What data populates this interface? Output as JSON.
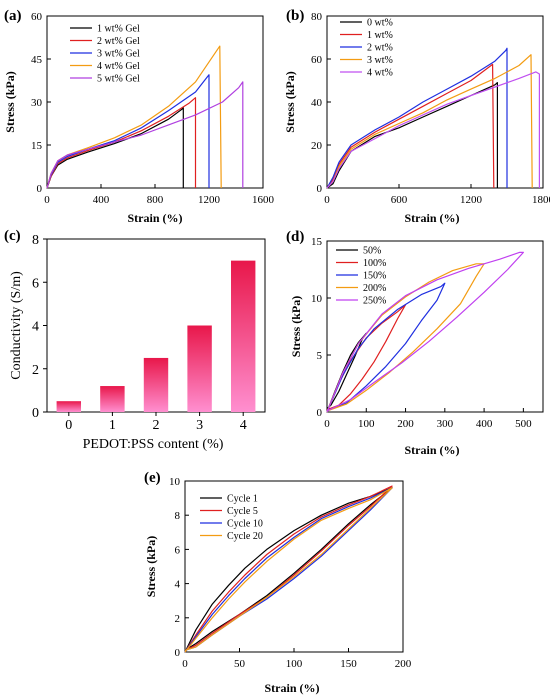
{
  "chart_data": [
    {
      "panel": "(a)",
      "type": "line",
      "xlabel": "Strain (%)",
      "ylabel": "Stress (kPa)",
      "xlim": [
        0,
        1600
      ],
      "ylim": [
        0,
        60
      ],
      "xticks": [
        0,
        400,
        800,
        1200,
        1600
      ],
      "yticks": [
        0,
        15,
        30,
        45,
        60
      ],
      "legend": "top-left",
      "series": [
        {
          "name": "1 wt% Gel",
          "color": "#000000",
          "x": [
            0,
            30,
            80,
            150,
            300,
            500,
            700,
            900,
            1000,
            1010,
            1010
          ],
          "y": [
            0,
            4,
            8,
            10,
            12.5,
            15.5,
            19,
            24,
            27.5,
            28,
            0
          ]
        },
        {
          "name": "2 wt% Gel",
          "color": "#e02020",
          "x": [
            0,
            30,
            80,
            150,
            300,
            500,
            700,
            900,
            1050,
            1100,
            1100
          ],
          "y": [
            0,
            4,
            8.5,
            10.5,
            13,
            16,
            20,
            25,
            29.5,
            31.5,
            0
          ]
        },
        {
          "name": "3 wt% Gel",
          "color": "#1f2fe0",
          "x": [
            0,
            30,
            80,
            150,
            300,
            500,
            700,
            900,
            1100,
            1200,
            1200
          ],
          "y": [
            0,
            4.5,
            9,
            11,
            13.5,
            16.5,
            21,
            27,
            33.5,
            39.5,
            0
          ]
        },
        {
          "name": "4 wt% Gel",
          "color": "#f39c12",
          "x": [
            0,
            30,
            80,
            150,
            300,
            500,
            700,
            900,
            1100,
            1280,
            1290
          ],
          "y": [
            0,
            5,
            9.5,
            11.5,
            14,
            17.5,
            22,
            28.5,
            37,
            49.5,
            0
          ]
        },
        {
          "name": "5 wt% Gel",
          "color": "#b040e0",
          "x": [
            0,
            30,
            80,
            150,
            300,
            500,
            700,
            900,
            1100,
            1300,
            1420,
            1450,
            1450
          ],
          "y": [
            0,
            5,
            9.5,
            11.5,
            13.5,
            16,
            18.5,
            22,
            25.5,
            30,
            35,
            37,
            0
          ]
        }
      ]
    },
    {
      "panel": "(b)",
      "type": "line",
      "xlabel": "Strain (%)",
      "ylabel": "Stress (kPa)",
      "xlim": [
        0,
        1800
      ],
      "ylim": [
        0,
        80
      ],
      "xticks": [
        0,
        600,
        1200,
        1800
      ],
      "yticks": [
        0,
        20,
        40,
        60,
        80
      ],
      "legend": "top-left",
      "series": [
        {
          "name": "0 wt%",
          "color": "#000000",
          "x": [
            0,
            50,
            100,
            200,
            400,
            600,
            800,
            1000,
            1200,
            1400,
            1420,
            1420
          ],
          "y": [
            0,
            2,
            8,
            17,
            24,
            28,
            33,
            38,
            43,
            48,
            49,
            0
          ]
        },
        {
          "name": "1 wt%",
          "color": "#e02020",
          "x": [
            0,
            50,
            100,
            200,
            400,
            600,
            800,
            1000,
            1200,
            1380,
            1390
          ],
          "y": [
            0,
            4,
            11,
            19,
            26,
            32,
            38,
            44,
            50,
            57.5,
            0
          ]
        },
        {
          "name": "2 wt%",
          "color": "#1f2fe0",
          "x": [
            0,
            50,
            100,
            200,
            400,
            600,
            800,
            1000,
            1200,
            1400,
            1490,
            1500,
            1500
          ],
          "y": [
            0,
            5,
            12,
            20,
            27,
            33,
            40,
            46,
            52,
            59,
            64,
            65,
            0
          ]
        },
        {
          "name": "3 wt%",
          "color": "#f39c12",
          "x": [
            0,
            50,
            100,
            200,
            400,
            600,
            800,
            1000,
            1200,
            1400,
            1600,
            1700,
            1710
          ],
          "y": [
            0,
            3,
            10,
            18,
            25,
            30,
            35,
            41,
            46,
            51,
            57,
            62,
            0
          ]
        },
        {
          "name": "4 wt%",
          "color": "#c050f0",
          "x": [
            0,
            50,
            100,
            200,
            400,
            600,
            800,
            1000,
            1200,
            1400,
            1600,
            1740,
            1770,
            1770
          ],
          "y": [
            0,
            3,
            9,
            17,
            23,
            29,
            34,
            39,
            43,
            47,
            51,
            54,
            53,
            0
          ]
        }
      ]
    },
    {
      "panel": "(c)",
      "type": "bar",
      "xlabel": "PEDOT:PSS content (%)",
      "ylabel": "Conductivity (S/m)",
      "categories": [
        "0",
        "1",
        "2",
        "3",
        "4"
      ],
      "values": [
        0.5,
        1.2,
        2.5,
        4.0,
        7.0
      ],
      "ylim": [
        0,
        8
      ],
      "yticks": [
        0,
        2,
        4,
        6,
        8
      ],
      "color_top": "#e8174a",
      "color_bottom": "#ff8fd0"
    },
    {
      "panel": "(d)",
      "type": "line",
      "xlabel": "Strain (%)",
      "ylabel": "Stress (kPa)",
      "xlim": [
        0,
        550
      ],
      "ylim": [
        0,
        15
      ],
      "xticks": [
        0,
        100,
        200,
        300,
        400,
        500
      ],
      "yticks": [
        0,
        5,
        10,
        15
      ],
      "legend": "top-left",
      "series": [
        {
          "name": "50%",
          "color": "#000000",
          "x": [
            0,
            20,
            40,
            60,
            80,
            100,
            90,
            70,
            50,
            30,
            10,
            0
          ],
          "y": [
            0,
            1.8,
            3.5,
            5.0,
            6.1,
            6.9,
            6.4,
            4.8,
            3.3,
            1.8,
            0.6,
            0.3
          ]
        },
        {
          "name": "100%",
          "color": "#e02020",
          "x": [
            0,
            30,
            60,
            100,
            140,
            180,
            200,
            180,
            150,
            120,
            90,
            60,
            30,
            0
          ],
          "y": [
            0,
            2.5,
            4.5,
            6.5,
            7.8,
            8.8,
            9.4,
            8.2,
            6.2,
            4.4,
            2.9,
            1.6,
            0.6,
            0.2
          ]
        },
        {
          "name": "150%",
          "color": "#1f2fe0",
          "x": [
            0,
            40,
            80,
            120,
            180,
            240,
            290,
            300,
            280,
            240,
            200,
            150,
            100,
            50,
            0
          ],
          "y": [
            0,
            3.2,
            5.6,
            7.3,
            9.0,
            10.3,
            11.0,
            11.3,
            9.8,
            8.0,
            6.0,
            4.0,
            2.3,
            0.8,
            0.1
          ]
        },
        {
          "name": "200%",
          "color": "#f39c12",
          "x": [
            0,
            40,
            80,
            140,
            200,
            260,
            320,
            380,
            400,
            380,
            340,
            280,
            220,
            160,
            100,
            50,
            0
          ],
          "y": [
            0,
            3.4,
            6.0,
            8.5,
            10.1,
            11.4,
            12.4,
            13.0,
            13.0,
            11.9,
            9.5,
            7.3,
            5.3,
            3.5,
            1.9,
            0.7,
            0.1
          ]
        },
        {
          "name": "250%",
          "color": "#c040f0",
          "x": [
            0,
            40,
            80,
            140,
            200,
            280,
            360,
            440,
            490,
            500,
            460,
            400,
            330,
            260,
            190,
            120,
            60,
            0
          ],
          "y": [
            0,
            3.4,
            6.0,
            8.6,
            10.2,
            11.6,
            12.6,
            13.4,
            14.0,
            14.0,
            12.5,
            10.5,
            8.3,
            6.2,
            4.3,
            2.6,
            1.1,
            0.1
          ]
        }
      ]
    },
    {
      "panel": "(e)",
      "type": "line",
      "xlabel": "Strain (%)",
      "ylabel": "Stress (kPa)",
      "xlim": [
        0,
        200
      ],
      "ylim": [
        0,
        10
      ],
      "xticks": [
        0,
        50,
        100,
        150,
        200
      ],
      "yticks": [
        0,
        2,
        4,
        6,
        8,
        10
      ],
      "legend": "top-left",
      "series": [
        {
          "name": "Cycle 1",
          "color": "#000000",
          "x": [
            0,
            10,
            25,
            40,
            55,
            75,
            100,
            125,
            150,
            170,
            190,
            170,
            150,
            125,
            100,
            75,
            50,
            25,
            10,
            0
          ],
          "y": [
            0,
            1.3,
            2.8,
            3.9,
            4.9,
            6.0,
            7.1,
            8.0,
            8.7,
            9.1,
            9.6,
            8.6,
            7.5,
            6.0,
            4.6,
            3.3,
            2.2,
            1.2,
            0.5,
            0.1
          ]
        },
        {
          "name": "Cycle 5",
          "color": "#e02020",
          "x": [
            0,
            10,
            25,
            40,
            55,
            75,
            100,
            125,
            150,
            170,
            190,
            170,
            150,
            125,
            100,
            75,
            50,
            25,
            10,
            0
          ],
          "y": [
            0,
            1.0,
            2.4,
            3.5,
            4.5,
            5.7,
            6.9,
            7.9,
            8.6,
            9.1,
            9.7,
            8.5,
            7.4,
            5.9,
            4.5,
            3.2,
            2.2,
            1.1,
            0.4,
            0.1
          ]
        },
        {
          "name": "Cycle 10",
          "color": "#1f2fe0",
          "x": [
            0,
            10,
            25,
            40,
            55,
            75,
            100,
            125,
            150,
            170,
            190,
            170,
            150,
            125,
            100,
            75,
            50,
            25,
            10,
            0
          ],
          "y": [
            0,
            0.9,
            2.2,
            3.3,
            4.3,
            5.5,
            6.7,
            7.8,
            8.5,
            9.0,
            9.6,
            8.3,
            7.1,
            5.6,
            4.3,
            3.1,
            2.1,
            1.0,
            0.3,
            0.1
          ]
        },
        {
          "name": "Cycle 20",
          "color": "#f39c12",
          "x": [
            0,
            10,
            25,
            40,
            55,
            75,
            100,
            125,
            150,
            170,
            190,
            170,
            150,
            125,
            100,
            75,
            50,
            25,
            10,
            0
          ],
          "y": [
            0,
            0.8,
            2.0,
            3.1,
            4.1,
            5.3,
            6.6,
            7.7,
            8.4,
            8.9,
            9.6,
            8.4,
            7.2,
            5.7,
            4.4,
            3.2,
            2.1,
            1.0,
            0.3,
            0.1
          ]
        }
      ]
    }
  ]
}
